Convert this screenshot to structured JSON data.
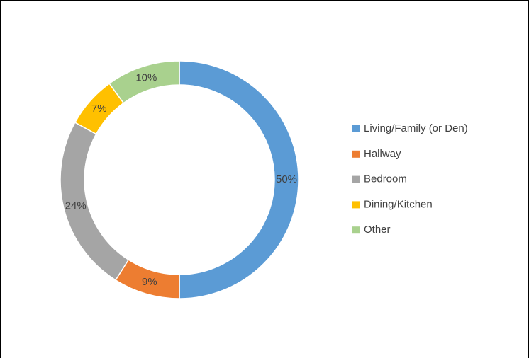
{
  "chart_data": {
    "type": "donut",
    "categories": [
      "Living/Family (or Den)",
      "Hallway",
      "Bedroom",
      "Dining/Kitchen",
      "Other"
    ],
    "values": [
      50,
      9,
      24,
      7,
      10
    ],
    "value_labels": [
      "50%",
      "9%",
      "24%",
      "7%",
      "10%"
    ],
    "colors": [
      "#5b9bd5",
      "#ed7d31",
      "#a5a5a5",
      "#ffc000",
      "#a9d18e"
    ],
    "legend": "right"
  }
}
